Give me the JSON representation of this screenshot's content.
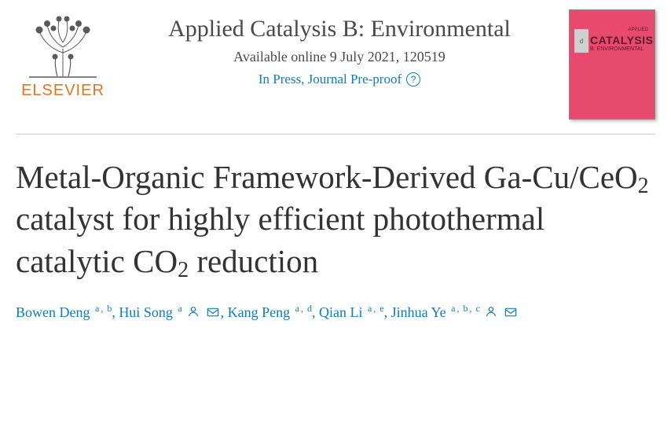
{
  "publisher": {
    "name": "ELSEVIER",
    "brand_color": "#e9711c"
  },
  "journal": {
    "title": "Applied Catalysis B: Environmental",
    "availability": "Available online 9 July 2021, 120519",
    "status": "In Press, Journal Pre-proof",
    "cover": {
      "bg_color": "#e84a6f",
      "small_top_right": "APPLIED",
      "main_word": "CATALYSIS",
      "subtitle": "B: ENVIRONMENTAL",
      "badge_text": "d"
    }
  },
  "article": {
    "title_html": "Metal-Organic Framework-Derived Ga-Cu/CeO<sub>2</sub> catalyst for highly efficient photothermal catalytic CO<sub>2</sub> reduction"
  },
  "authors": [
    {
      "name": "Bowen Deng",
      "affiliations": [
        "a",
        "b"
      ],
      "person_icon": false,
      "mail_icon": false
    },
    {
      "name": "Hui Song",
      "affiliations": [
        "a"
      ],
      "person_icon": true,
      "mail_icon": true
    },
    {
      "name": "Kang Peng",
      "affiliations": [
        "a",
        "d"
      ],
      "person_icon": false,
      "mail_icon": false
    },
    {
      "name": "Qian Li",
      "affiliations": [
        "a",
        "e"
      ],
      "person_icon": false,
      "mail_icon": false
    },
    {
      "name": "Jinhua Ye",
      "affiliations": [
        "a",
        "b",
        "c"
      ],
      "person_icon": true,
      "mail_icon": true
    }
  ],
  "colors": {
    "link": "#0c7dbb",
    "text": "#333333",
    "divider": "#d0d0d0"
  }
}
